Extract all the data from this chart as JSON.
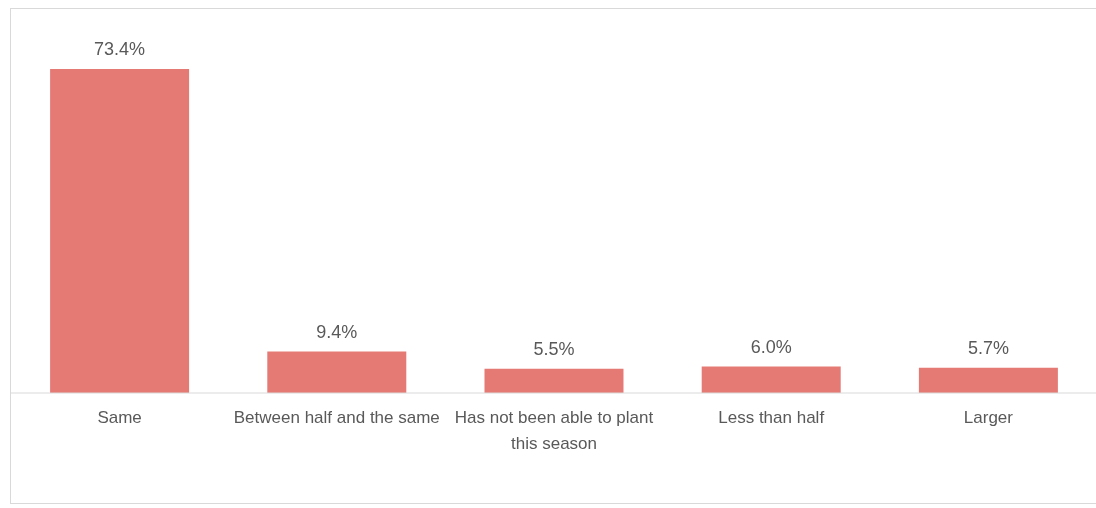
{
  "chart_data": {
    "type": "bar",
    "categories": [
      "Same",
      "Between half and the same",
      "Has not been able to plant this season",
      "Less than half",
      "Larger"
    ],
    "values": [
      73.4,
      9.4,
      5.5,
      6.0,
      5.7
    ],
    "value_labels": [
      "73.4%",
      "9.4%",
      "5.5%",
      "6.0%",
      "5.7%"
    ],
    "color": "#e57a75",
    "grid": false,
    "legend": false
  }
}
